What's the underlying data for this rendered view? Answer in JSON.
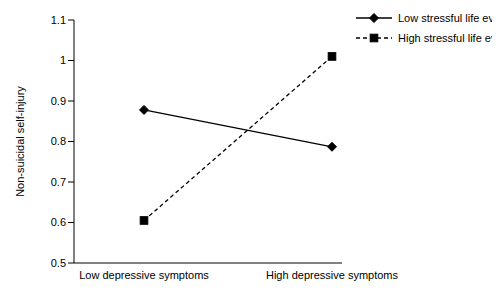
{
  "chart_data": {
    "type": "line",
    "y_label": "Non-suicidal self-injury",
    "categories": [
      "Low depressive symptoms",
      "High depressive symptoms"
    ],
    "series": [
      {
        "name": "Low stressful life events",
        "color": "#000000",
        "marker": "diamond",
        "line_style": "solid",
        "values": [
          0.878,
          0.787
        ]
      },
      {
        "name": "High stressful life events",
        "color": "#000000",
        "marker": "square",
        "line_style": "dashed",
        "values": [
          0.605,
          1.01
        ]
      }
    ],
    "ylim": [
      0.5,
      1.1
    ],
    "yticks": [
      0.5,
      0.6,
      0.7,
      0.8,
      0.9,
      1,
      1.1
    ],
    "grid": false,
    "legend": "top right"
  }
}
